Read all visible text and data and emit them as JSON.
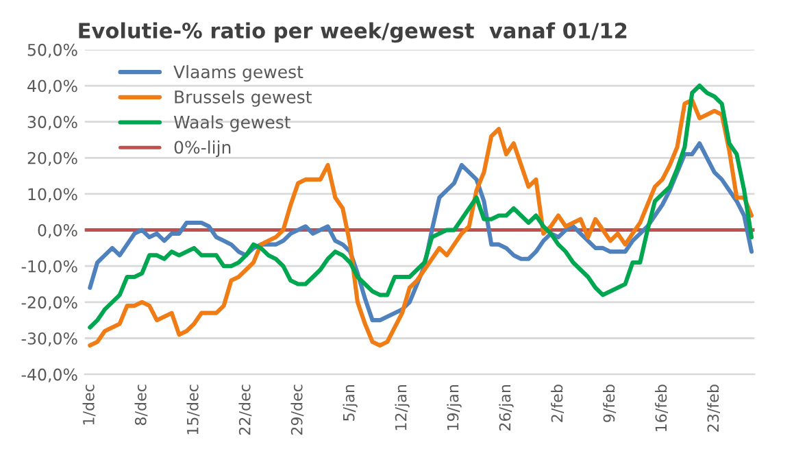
{
  "chart_data": {
    "type": "line",
    "title": "Evolutie-% ratio per week/gewest  vanaf 01/12",
    "ylim": [
      -40,
      50
    ],
    "yticks": [
      {
        "value": -40,
        "label": "-40,0%"
      },
      {
        "value": -30,
        "label": "-30,0%"
      },
      {
        "value": -20,
        "label": "-20,0%"
      },
      {
        "value": -10,
        "label": "-10,0%"
      },
      {
        "value": 0,
        "label": "0,0%"
      },
      {
        "value": 10,
        "label": "10,0%"
      },
      {
        "value": 20,
        "label": "20,0%"
      },
      {
        "value": 30,
        "label": "30,0%"
      },
      {
        "value": 40,
        "label": "40,0%"
      },
      {
        "value": 50,
        "label": "50,0%"
      }
    ],
    "categories": [
      "1/dec",
      null,
      null,
      null,
      null,
      null,
      null,
      "8/dec",
      null,
      null,
      null,
      null,
      null,
      null,
      "15/dec",
      null,
      null,
      null,
      null,
      null,
      null,
      "22/dec",
      null,
      null,
      null,
      null,
      null,
      null,
      "29/dec",
      null,
      null,
      null,
      null,
      null,
      null,
      "5/jan",
      null,
      null,
      null,
      null,
      null,
      null,
      "12/jan",
      null,
      null,
      null,
      null,
      null,
      null,
      "19/jan",
      null,
      null,
      null,
      null,
      null,
      null,
      "26/jan",
      null,
      null,
      null,
      null,
      null,
      null,
      "2/feb",
      null,
      null,
      null,
      null,
      null,
      null,
      "9/feb",
      null,
      null,
      null,
      null,
      null,
      null,
      "16/feb",
      null,
      null,
      null,
      null,
      null,
      null,
      "23/feb",
      null,
      null,
      null,
      null,
      null
    ],
    "grid": "y",
    "legend": "top left",
    "line_style": "solid",
    "series": [
      {
        "name": "Vlaams gewest",
        "color": "#4f81bd",
        "values": [
          -16,
          -9,
          -7,
          -5,
          -7,
          -4,
          -1,
          0,
          -2,
          -1,
          -3,
          -1,
          -1,
          2,
          2,
          2,
          1,
          -2,
          -3,
          -4,
          -6,
          -7,
          -5,
          -4,
          -4,
          -4,
          -3,
          -1,
          0,
          1,
          -1,
          0,
          1,
          -3,
          -4,
          -6,
          -12,
          -19,
          -25,
          -25,
          -24,
          -23,
          -22,
          -20,
          -15,
          -10,
          0,
          9,
          11,
          13,
          18,
          16,
          14,
          8,
          -4,
          -4,
          -5,
          -7,
          -8,
          -8,
          -6,
          -3,
          -1,
          -2,
          0,
          1,
          -1,
          -3,
          -5,
          -5,
          -6,
          -6,
          -6,
          -3,
          -1,
          1,
          4,
          7,
          11,
          16,
          21,
          21,
          24,
          20,
          16,
          14,
          11,
          8,
          4,
          -6
        ]
      },
      {
        "name": "Brussels gewest",
        "color": "#f07c16",
        "values": [
          -32,
          -31,
          -28,
          -27,
          -26,
          -21,
          -21,
          -20,
          -21,
          -25,
          -24,
          -23,
          -29,
          -28,
          -26,
          -23,
          -23,
          -23,
          -21,
          -14,
          -13,
          -11,
          -9,
          -4,
          -3,
          -2,
          0,
          7,
          13,
          14,
          14,
          14,
          18,
          9,
          6,
          -4,
          -20,
          -26,
          -31,
          -32,
          -31,
          -27,
          -23,
          -16,
          -14,
          -11,
          -8,
          -5,
          -7,
          -4,
          -1,
          1,
          11,
          16,
          26,
          28,
          21,
          24,
          18,
          12,
          14,
          -1,
          1,
          4,
          1,
          2,
          3,
          -2,
          3,
          0,
          -3,
          -1,
          -4,
          -1,
          2,
          7,
          12,
          14,
          18,
          23,
          35,
          36,
          31,
          32,
          33,
          32,
          22,
          9,
          9,
          4
        ]
      },
      {
        "name": "Waals gewest",
        "color": "#00a650",
        "values": [
          -27,
          -25,
          -22,
          -20,
          -18,
          -13,
          -13,
          -12,
          -7,
          -7,
          -8,
          -6,
          -7,
          -6,
          -5,
          -7,
          -7,
          -7,
          -10,
          -10,
          -9,
          -7,
          -4,
          -5,
          -7,
          -8,
          -10,
          -14,
          -15,
          -15,
          -13,
          -11,
          -8,
          -6,
          -7,
          -9,
          -13,
          -15,
          -17,
          -18,
          -18,
          -13,
          -13,
          -13,
          -11,
          -9,
          -2,
          -1,
          0,
          0,
          3,
          6,
          9,
          3,
          3,
          4,
          4,
          6,
          4,
          2,
          4,
          1,
          -1,
          -4,
          -6,
          -9,
          -11,
          -13,
          -16,
          -18,
          -17,
          -16,
          -15,
          -9,
          -9,
          0,
          8,
          10,
          12,
          17,
          23,
          38,
          40,
          38,
          37,
          35,
          24,
          21,
          11,
          -2
        ]
      }
    ],
    "ref_lines": [
      {
        "axis": "y",
        "value": 0,
        "label": "0%-lijn",
        "color": "#c0504d"
      }
    ]
  }
}
